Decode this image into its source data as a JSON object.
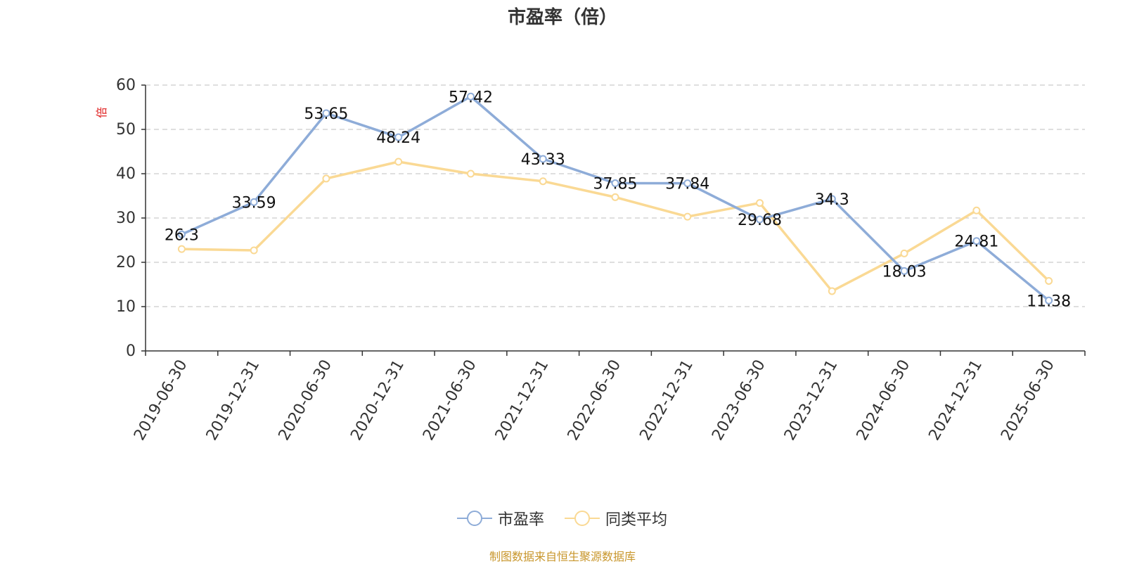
{
  "title": "市盈率（倍）",
  "source": "制图数据来自恒生聚源数据库",
  "colors": {
    "pe": "#8eacd8",
    "avg": "#fad994",
    "unit": "#e02020",
    "source": "#c8962b",
    "grid": "#cccccc",
    "axis": "#333333"
  },
  "chart_data": {
    "type": "line",
    "categories": [
      "2019-06-30",
      "2019-12-31",
      "2020-06-30",
      "2020-12-31",
      "2021-06-30",
      "2021-12-31",
      "2022-06-30",
      "2022-12-31",
      "2023-06-30",
      "2023-12-31",
      "2024-06-30",
      "2024-12-31",
      "2025-06-30"
    ],
    "ylabel": "倍",
    "ylim": [
      0,
      60
    ],
    "yticks": [
      0,
      10,
      20,
      30,
      40,
      50,
      60
    ],
    "grid": true,
    "legend_position": "bottom-center",
    "series": [
      {
        "name": "市盈率",
        "values": [
          26.3,
          33.59,
          53.65,
          48.24,
          57.42,
          43.33,
          37.85,
          37.84,
          29.68,
          34.3,
          18.03,
          24.81,
          11.38
        ],
        "labels": [
          "26.3",
          "33.59",
          "53.65",
          "48.24",
          "57.42",
          "43.33",
          "37.85",
          "37.84",
          "29.68",
          "34.3",
          "18.03",
          "24.81",
          "11.38"
        ]
      },
      {
        "name": "同类平均",
        "values": [
          23.0,
          22.7,
          38.9,
          42.7,
          40.0,
          38.3,
          34.7,
          30.3,
          33.4,
          13.5,
          22.0,
          31.7,
          15.8
        ]
      }
    ]
  }
}
